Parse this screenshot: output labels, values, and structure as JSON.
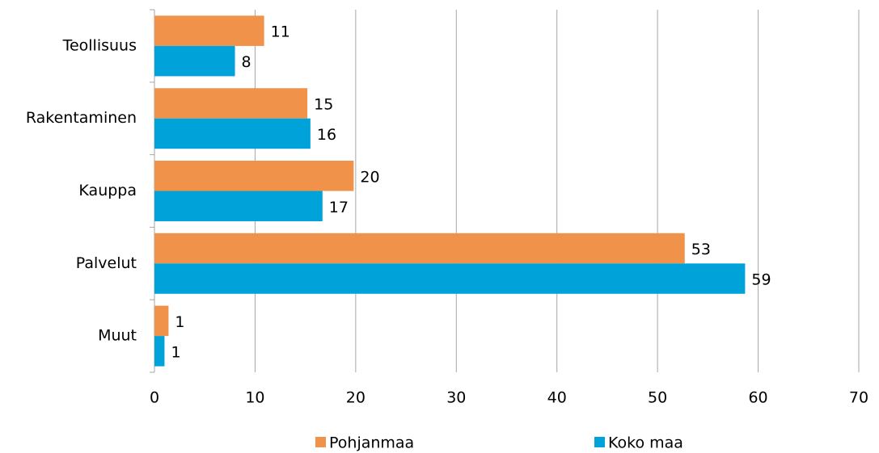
{
  "chart_data": {
    "type": "bar",
    "orientation": "horizontal",
    "categories": [
      "Teollisuus",
      "Rakentaminen",
      "Kauppa",
      "Palvelut",
      "Muut"
    ],
    "series": [
      {
        "name": "Pohjanmaa",
        "color": "#f0924a",
        "values": [
          10.9,
          15.2,
          19.8,
          52.7,
          1.4
        ],
        "value_labels": [
          "11",
          "15",
          "20",
          "53",
          "1"
        ]
      },
      {
        "name": "Koko maa",
        "color": "#00a3d9",
        "values": [
          8.0,
          15.5,
          16.7,
          58.7,
          1.0
        ],
        "value_labels": [
          "8",
          "16",
          "17",
          "59",
          "1"
        ]
      }
    ],
    "xlim": [
      0,
      70
    ],
    "xticks": [
      0,
      10,
      20,
      30,
      40,
      50,
      60,
      70
    ],
    "grid": true,
    "legend": "bottom"
  }
}
